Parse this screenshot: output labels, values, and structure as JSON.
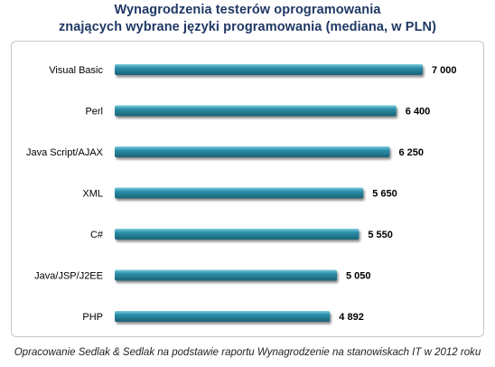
{
  "header": {
    "title_line1": "Wynagrodzenia testerów oprogramowania",
    "title_line2": "znających wybrane języki programowania (mediana, w PLN)"
  },
  "footer": {
    "source": "Opracowanie Sedlak & Sedlak na podstawie raportu Wynagrodzenie na stanowiskach IT w 2012 roku"
  },
  "chart_data": {
    "type": "bar",
    "orientation": "horizontal",
    "title": "Wynagrodzenia testerów oprogramowania znających wybrane języki programowania (mediana, w PLN)",
    "categories": [
      "Visual Basic",
      "Perl",
      "Java Script/AJAX",
      "XML",
      "C#",
      "Java/JSP/J2EE",
      "PHP"
    ],
    "values": [
      7000,
      6400,
      6250,
      5650,
      5550,
      5050,
      4892
    ],
    "value_labels": [
      "7 000",
      "6 400",
      "6 250",
      "5 650",
      "5 550",
      "5 050",
      "4 892"
    ],
    "xlim": [
      0,
      7000
    ],
    "grid": false,
    "legend": "none",
    "bar_color": "#2b8fa8",
    "bar_highlight_color": "#7ccde0",
    "bar_shadow_color": "#1b6276",
    "label_color": "#000000",
    "title_color": "#1f3864"
  }
}
